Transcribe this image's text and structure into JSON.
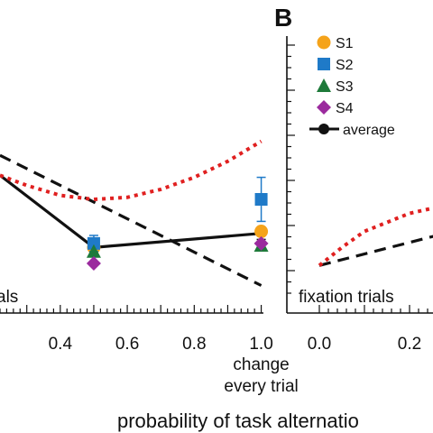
{
  "chart_data": [
    {
      "panel": "A",
      "type": "line",
      "annotation": "als",
      "x_ticks": [
        "0.4",
        "0.6",
        "0.8",
        "1.0"
      ],
      "x_extra_label": [
        "change",
        "every trial"
      ],
      "xlim": [
        0.22,
        1.02
      ],
      "ylim": [
        0,
        1
      ],
      "series": [
        {
          "name": "average",
          "style": "solid",
          "color": "#111111",
          "x": [
            0.22,
            0.5,
            1.0
          ],
          "y": [
            0.62,
            0.26,
            0.33
          ],
          "err": [
            0,
            0.03,
            0.03
          ]
        },
        {
          "style": "dashed",
          "color": "#111111",
          "x": [
            0.22,
            1.0
          ],
          "y": [
            0.72,
            0.07
          ]
        },
        {
          "style": "dotted",
          "color": "#e02020",
          "x": [
            0.22,
            0.3,
            0.4,
            0.5,
            0.6,
            0.7,
            0.8,
            0.9,
            1.0
          ],
          "y": [
            0.62,
            0.57,
            0.52,
            0.5,
            0.51,
            0.55,
            0.61,
            0.69,
            0.79
          ]
        },
        {
          "name": "S1",
          "marker": "circle",
          "color": "#f5a31a",
          "x": [
            0.5,
            1.0
          ],
          "y": [
            0.26,
            0.34
          ]
        },
        {
          "name": "S2",
          "marker": "square",
          "color": "#1f7ac8",
          "x": [
            0.5,
            1.0
          ],
          "y": [
            0.28,
            0.5
          ],
          "err": [
            0.04,
            0.11
          ]
        },
        {
          "name": "S3",
          "marker": "triangle",
          "color": "#1e7a3a",
          "x": [
            0.5,
            1.0
          ],
          "y": [
            0.24,
            0.27
          ]
        },
        {
          "name": "S4",
          "marker": "diamond",
          "color": "#9b2a9e",
          "x": [
            0.5,
            1.0
          ],
          "y": [
            0.18,
            0.28
          ]
        }
      ]
    },
    {
      "panel": "B",
      "type": "line",
      "annotation": "fixation trials",
      "x_ticks": [
        "0.0",
        "0.2"
      ],
      "xlim": [
        0,
        0.4
      ],
      "ylim": [
        0,
        1
      ],
      "series": [
        {
          "style": "dashed",
          "color": "#111111",
          "x": [
            0,
            0.4
          ],
          "y": [
            0.17,
            0.4
          ]
        },
        {
          "style": "dotted",
          "color": "#e02020",
          "x": [
            0,
            0.05,
            0.1,
            0.2,
            0.3,
            0.4
          ],
          "y": [
            0.17,
            0.26,
            0.34,
            0.43,
            0.48,
            0.51
          ]
        }
      ],
      "legend": {
        "placement": "top-right",
        "entries": [
          {
            "label": "S1",
            "marker": "circle",
            "color": "#f5a31a"
          },
          {
            "label": "S2",
            "marker": "square",
            "color": "#1f7ac8"
          },
          {
            "label": "S3",
            "marker": "triangle",
            "color": "#1e7a3a"
          },
          {
            "label": "S4",
            "marker": "diamond",
            "color": "#9b2a9e"
          },
          {
            "label": "average",
            "marker": "line-dot",
            "color": "#111111"
          }
        ]
      }
    }
  ],
  "xlabel": "probability of task alternatio",
  "panel_letter_b": "B"
}
